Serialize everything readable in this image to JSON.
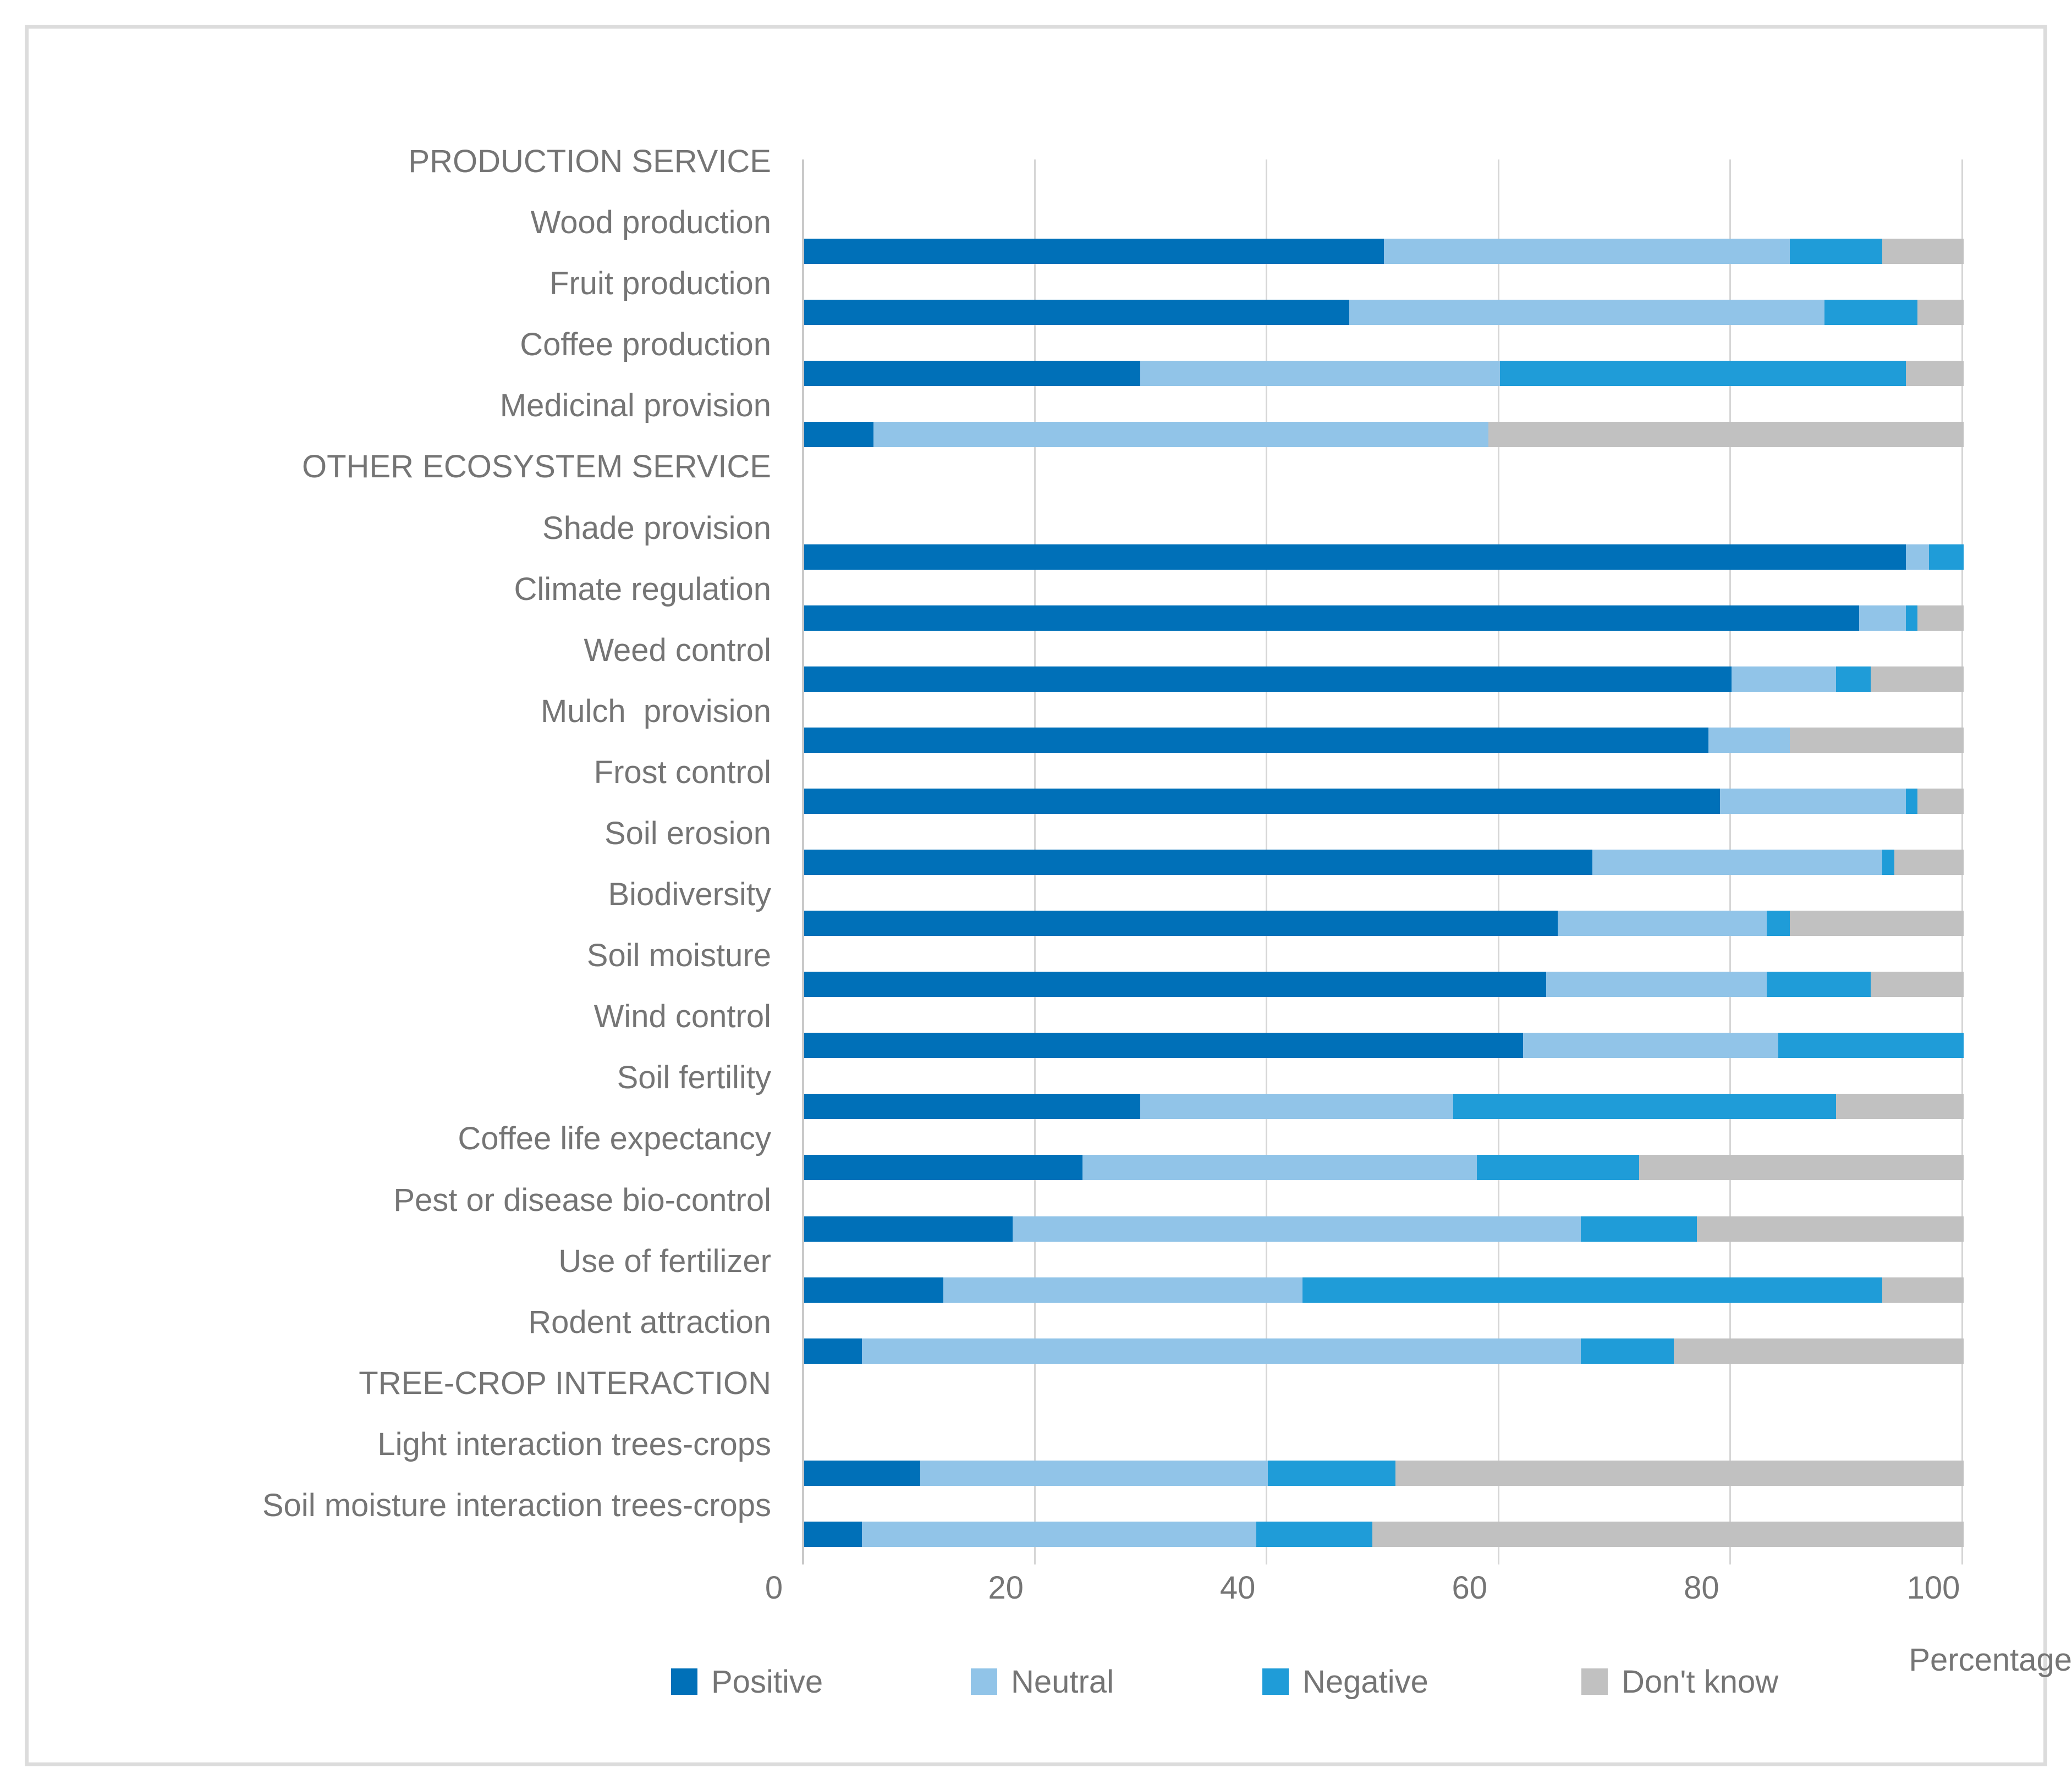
{
  "chart_data": {
    "type": "bar",
    "orientation": "horizontal",
    "stacked": true,
    "title": "",
    "xlabel": "Percentage",
    "xlim": [
      0,
      100
    ],
    "x_ticks": [
      0,
      20,
      40,
      60,
      80,
      100
    ],
    "grid": true,
    "legend_position": "bottom",
    "series_names": [
      "Positive",
      "Neutral",
      "Negative",
      "Don't know"
    ],
    "colors": {
      "Positive": "#0070B8",
      "Neutral": "#91C4E8",
      "Negative": "#1F9CD8",
      "Don't know": "#C1C1C1"
    },
    "text_color": "#757575",
    "gridline_color": "#D6D6D6",
    "frame_border_color": "#DCDCDC",
    "rows": [
      {
        "label": "PRODUCTION SERVICE",
        "header": true
      },
      {
        "label": "Wood production",
        "values": [
          50,
          35,
          8,
          7
        ]
      },
      {
        "label": "Fruit production",
        "values": [
          47,
          41,
          8,
          4
        ]
      },
      {
        "label": "Coffee production",
        "values": [
          29,
          31,
          35,
          5
        ]
      },
      {
        "label": "Medicinal provision",
        "values": [
          6,
          53,
          0,
          41
        ]
      },
      {
        "label": "OTHER ECOSYSTEM SERVICE",
        "header": true
      },
      {
        "label": "Shade provision",
        "values": [
          95,
          2,
          3,
          0
        ]
      },
      {
        "label": "Climate regulation",
        "values": [
          91,
          4,
          1,
          4
        ]
      },
      {
        "label": "Weed control",
        "values": [
          80,
          9,
          3,
          8
        ]
      },
      {
        "label": "Mulch  provision",
        "values": [
          78,
          7,
          0,
          15
        ]
      },
      {
        "label": "Frost control",
        "values": [
          79,
          16,
          1,
          4
        ]
      },
      {
        "label": "Soil erosion",
        "values": [
          68,
          25,
          1,
          6
        ]
      },
      {
        "label": "Biodiversity",
        "values": [
          65,
          18,
          2,
          15
        ]
      },
      {
        "label": "Soil moisture",
        "values": [
          64,
          19,
          9,
          8
        ]
      },
      {
        "label": "Wind control",
        "values": [
          62,
          22,
          16,
          0
        ]
      },
      {
        "label": "Soil fertility",
        "values": [
          29,
          27,
          33,
          11
        ]
      },
      {
        "label": "Coffee life expectancy",
        "values": [
          24,
          34,
          14,
          28
        ]
      },
      {
        "label": "Pest or disease bio-control",
        "values": [
          18,
          49,
          10,
          23
        ]
      },
      {
        "label": "Use of fertilizer",
        "values": [
          12,
          31,
          50,
          7
        ]
      },
      {
        "label": "Rodent attraction",
        "values": [
          5,
          62,
          8,
          25
        ]
      },
      {
        "label": "TREE-CROP INTERACTION",
        "header": true
      },
      {
        "label": "Light interaction trees-crops",
        "values": [
          10,
          30,
          11,
          49
        ]
      },
      {
        "label": "Soil moisture interaction trees-crops",
        "values": [
          5,
          34,
          10,
          51
        ]
      }
    ]
  }
}
